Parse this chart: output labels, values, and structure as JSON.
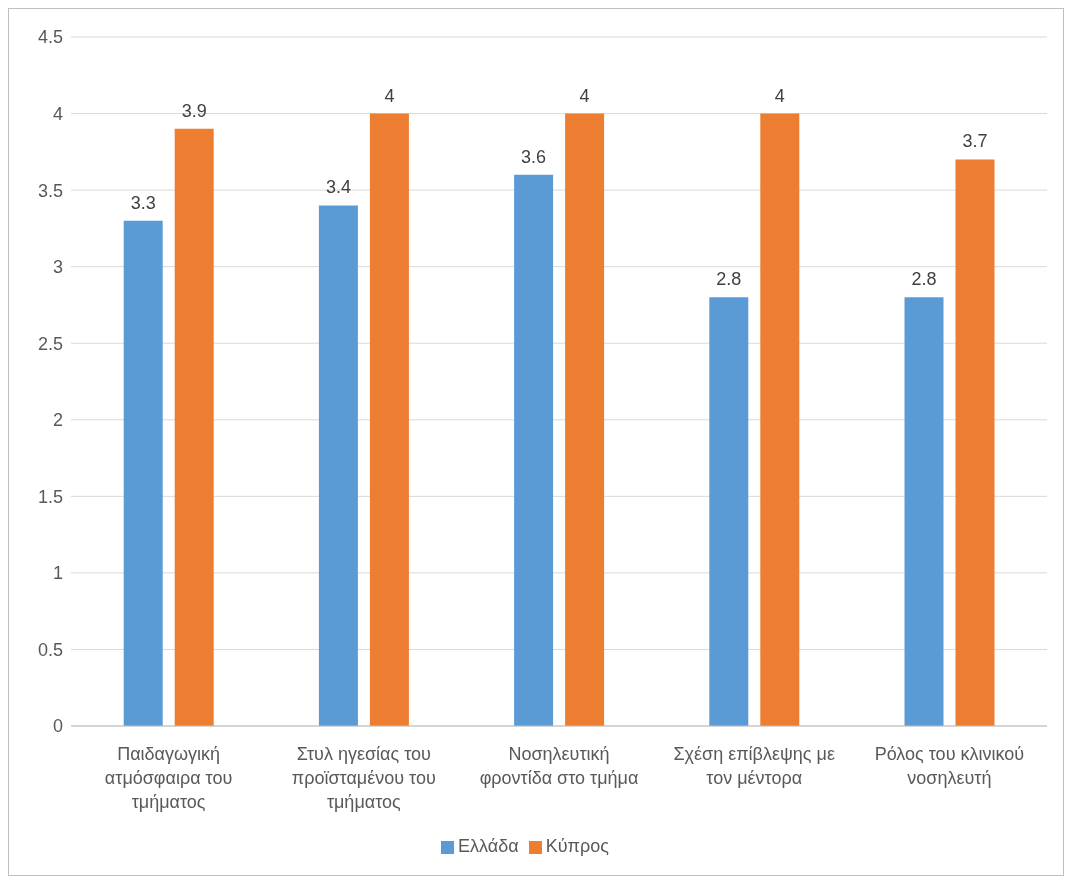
{
  "chart_data": {
    "type": "bar",
    "categories": [
      "Παιδαγωγική ατμόσφαιρα του τμήματος",
      "Στυλ ηγεσίας του προϊσταμένου του τμήματος",
      "Νοσηλευτική φροντίδα στο τμήμα",
      "Σχέση επίβλεψης με τον μέντορα",
      "Ρόλος του κλινικού νοσηλευτή"
    ],
    "series": [
      {
        "name": "Ελλάδα",
        "color": "#5b9bd5",
        "values": [
          3.3,
          3.4,
          3.6,
          2.8,
          2.8
        ]
      },
      {
        "name": "Κύπρος",
        "color": "#ed7d31",
        "values": [
          3.9,
          4,
          4,
          4,
          3.7
        ]
      }
    ],
    "ylim": [
      0,
      4.5
    ],
    "yticks": [
      0,
      0.5,
      1,
      1.5,
      2,
      2.5,
      3,
      3.5,
      4,
      4.5
    ],
    "grid": "y",
    "legend": "bottom",
    "data_labels": true
  }
}
